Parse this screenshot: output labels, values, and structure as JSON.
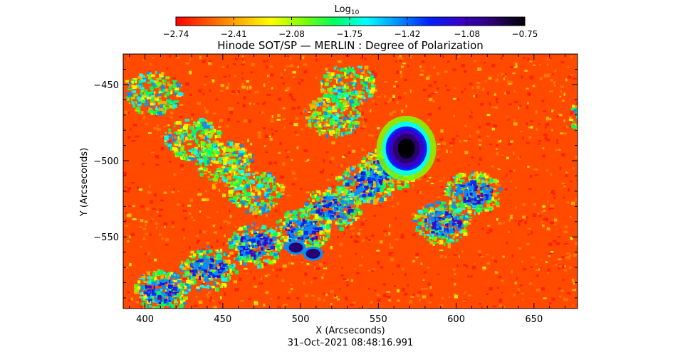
{
  "chart_data": {
    "type": "heatmap",
    "title": "Hinode SOT/SP — MERLIN : Degree of Polarization",
    "subtitle": "31–Oct–2021 08:48:16.991",
    "xlabel": "X (Arcseconds)",
    "ylabel": "Y (Arcseconds)",
    "xlim": [
      386,
      678
    ],
    "ylim": [
      -597,
      -430
    ],
    "x_ticks": [
      400,
      450,
      500,
      550,
      600,
      650
    ],
    "x_tick_labels": [
      "400",
      "450",
      "500",
      "550",
      "600",
      "650"
    ],
    "y_ticks": [
      -450,
      -500,
      -550
    ],
    "y_tick_labels": [
      "−450",
      "−500",
      "−550"
    ],
    "colorbar": {
      "label_base": "Log",
      "label_sub": "10",
      "range": [
        -2.74,
        -0.75
      ],
      "ticks": [
        -2.74,
        -2.41,
        -2.08,
        -1.75,
        -1.42,
        -1.08,
        -0.75
      ],
      "tick_labels": [
        "−2.74",
        "−2.41",
        "−2.08",
        "−1.75",
        "−1.42",
        "−1.08",
        "−0.75"
      ],
      "colormap": [
        "#ff0000",
        "#ff5500",
        "#ffb000",
        "#ffff00",
        "#80ff00",
        "#00ff60",
        "#00ffff",
        "#0090ff",
        "#0020ff",
        "#3a00c8",
        "#2a0070",
        "#000000"
      ]
    },
    "features": [
      {
        "kind": "sunspot",
        "x": 568,
        "y": -492,
        "value": -0.85
      },
      {
        "kind": "pore",
        "x": 497,
        "y": -557,
        "value": -1.0
      },
      {
        "kind": "pore",
        "x": 508,
        "y": -561,
        "value": -1.0
      },
      {
        "kind": "plage",
        "x": 470,
        "y": -540,
        "value": -1.6
      }
    ]
  }
}
